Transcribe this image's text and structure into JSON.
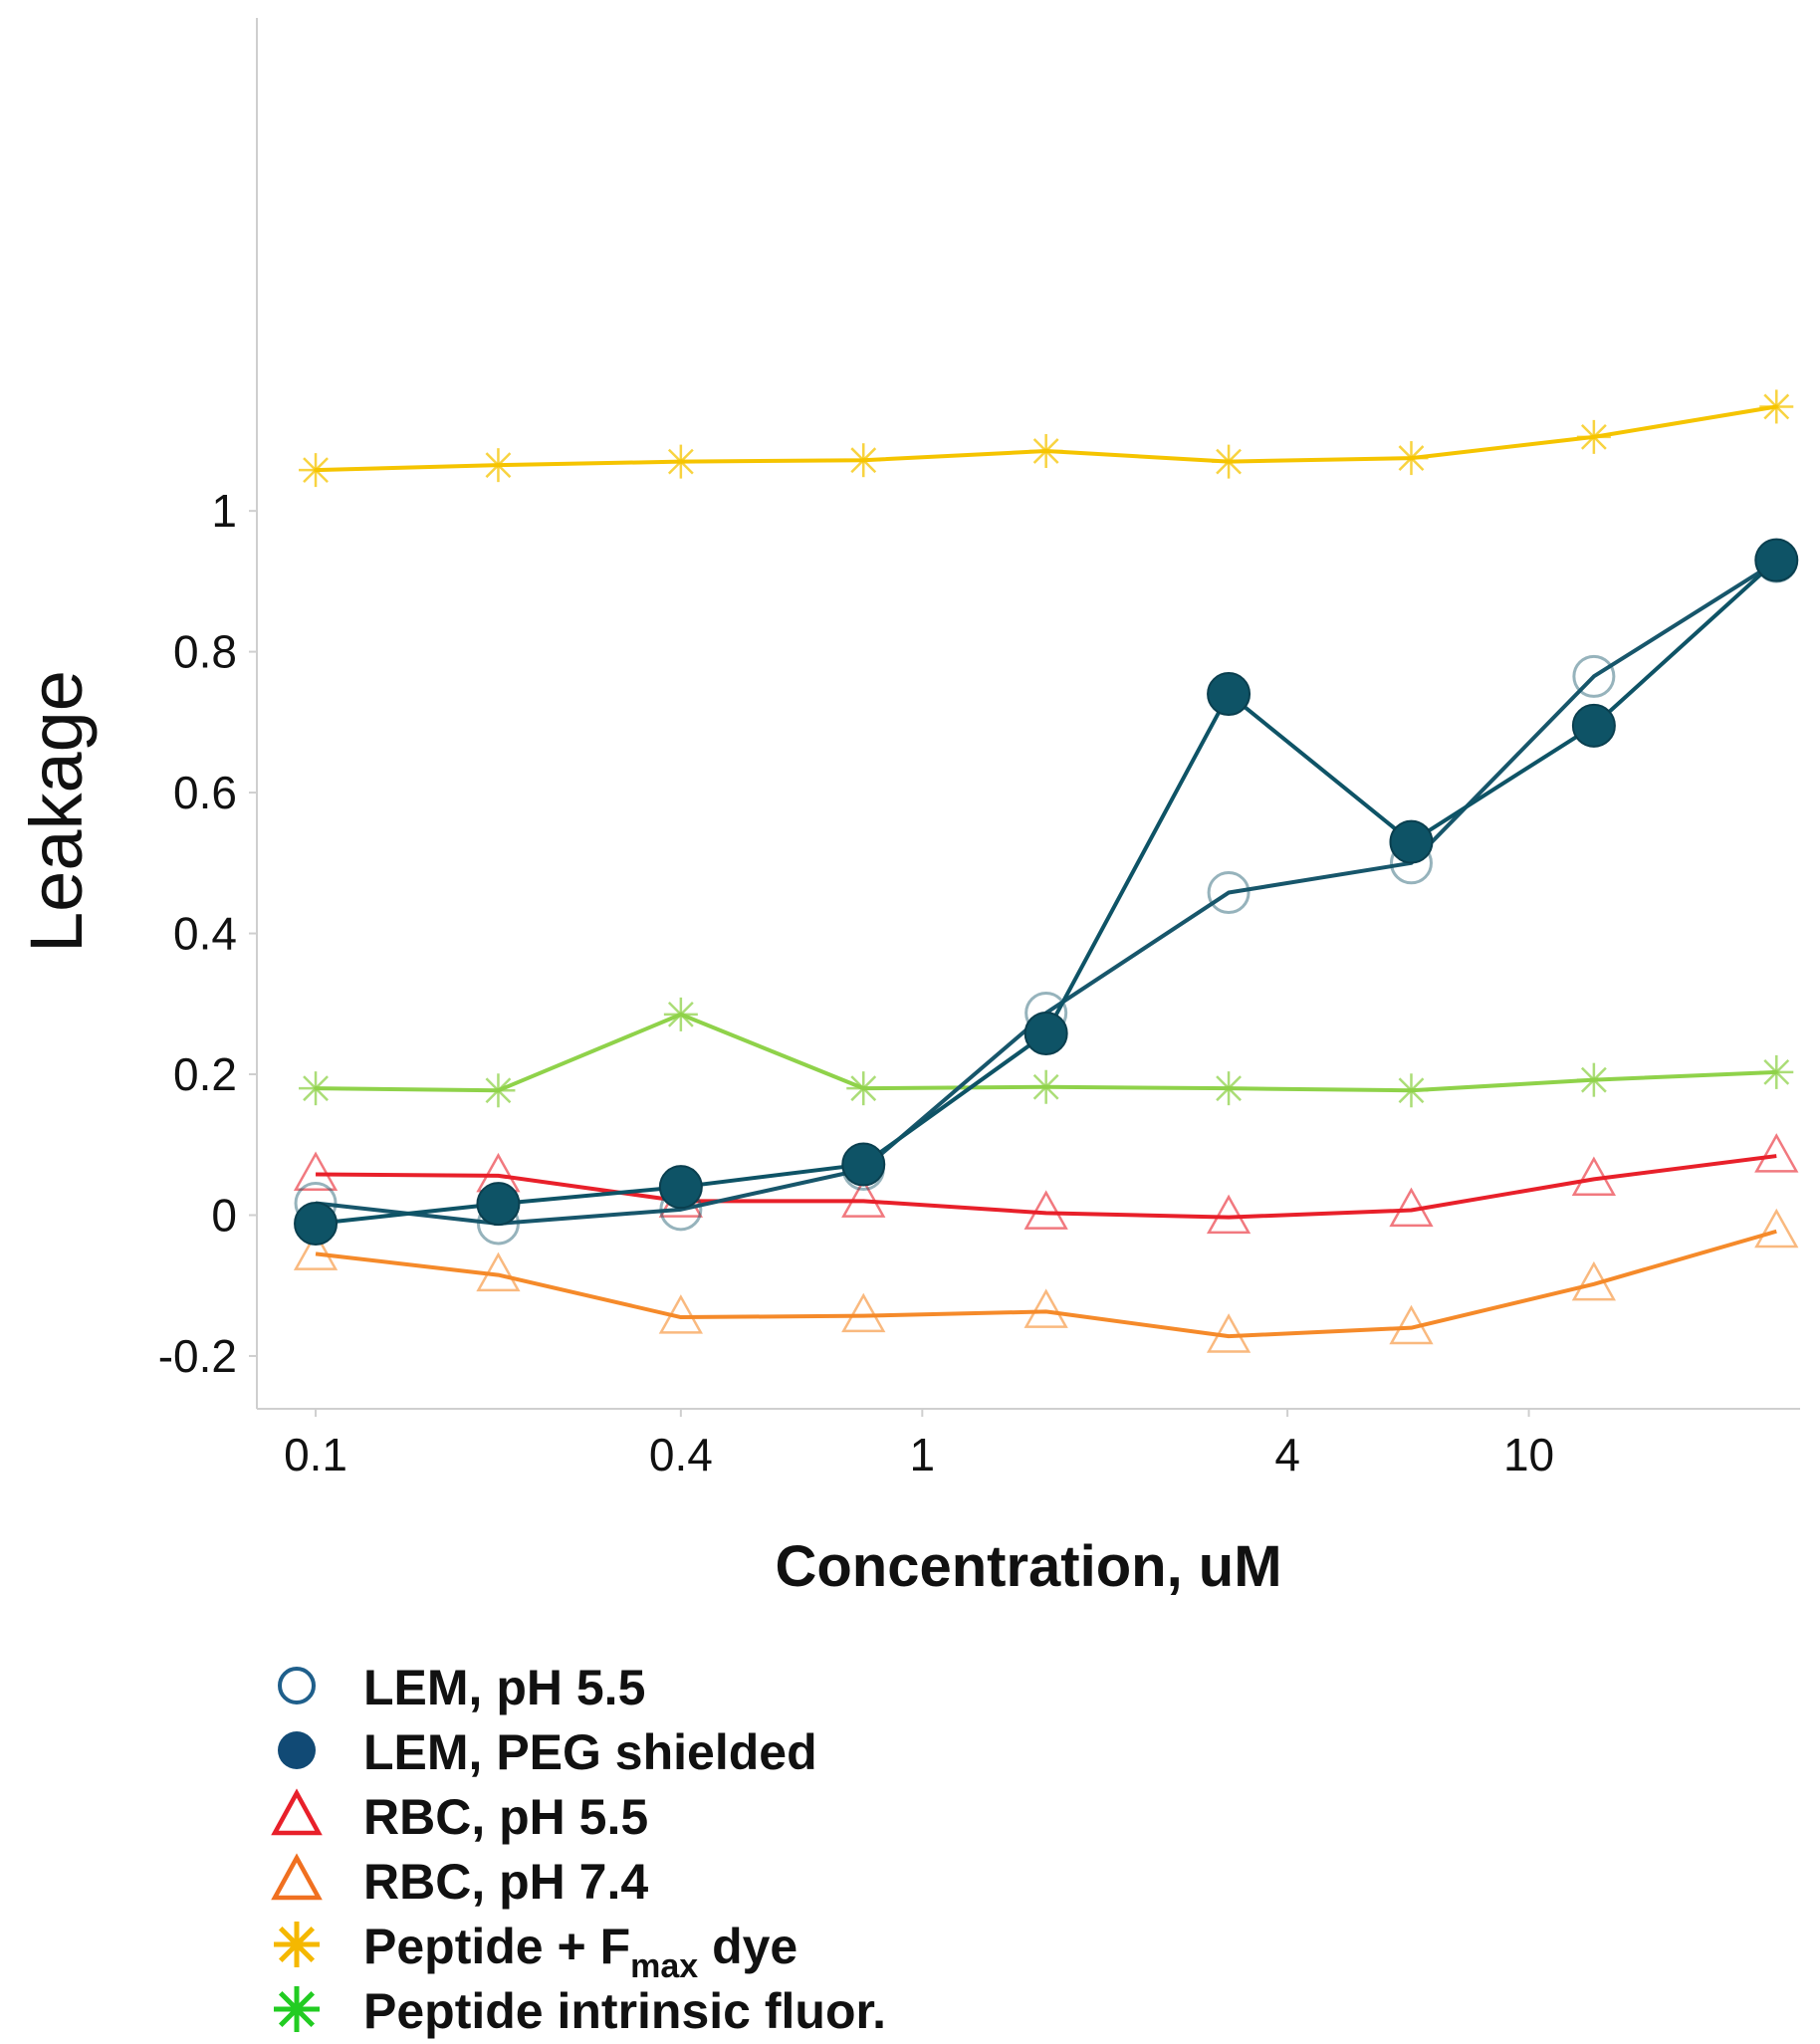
{
  "chart_data": {
    "type": "line",
    "xlabel": "Concentration, uM",
    "ylabel": "Leakage",
    "xscale": "log",
    "xlim": [
      0.08,
      28
    ],
    "ylim": [
      -0.275,
      1.7
    ],
    "xticks": [
      {
        "value": 0.1,
        "label": "0.1"
      },
      {
        "value": 0.4,
        "label": "0.4"
      },
      {
        "value": 1,
        "label": "1"
      },
      {
        "value": 4,
        "label": "4"
      },
      {
        "value": 10,
        "label": "10"
      }
    ],
    "yticks": [
      {
        "value": -0.2,
        "label": "-0.2"
      },
      {
        "value": 0,
        "label": "0"
      },
      {
        "value": 0.2,
        "label": "0.2"
      },
      {
        "value": 0.4,
        "label": "0.4"
      },
      {
        "value": 0.6,
        "label": "0.6"
      },
      {
        "value": 0.8,
        "label": "0.8"
      },
      {
        "value": 1,
        "label": "1"
      }
    ],
    "grid": false,
    "legend_position": "bottom-left",
    "x": [
      0.1,
      0.2,
      0.4,
      0.8,
      1.6,
      3.2,
      6.4,
      12.8,
      25.6
    ],
    "series": [
      {
        "name": "Peptide intrinsic fluor.",
        "marker": "asterisk",
        "color": "#8fd24a",
        "legend_color": "#22cc22",
        "values": [
          0.18,
          0.177,
          0.285,
          0.18,
          0.182,
          0.18,
          0.177,
          0.192,
          0.203
        ]
      },
      {
        "name": "Peptide + F",
        "name_sub": "max",
        "name_suffix": " dye",
        "marker": "asterisk",
        "color": "#f5c400",
        "legend_color": "#f5b800",
        "values": [
          1.058,
          1.065,
          1.07,
          1.072,
          1.085,
          1.07,
          1.075,
          1.105,
          1.148
        ]
      },
      {
        "name": "RBC, pH 7.4",
        "marker": "triangle-open",
        "color": "#f58a2a",
        "legend_color": "#f07020",
        "values": [
          -0.055,
          -0.085,
          -0.145,
          -0.143,
          -0.137,
          -0.172,
          -0.16,
          -0.098,
          -0.023
        ]
      },
      {
        "name": "RBC, pH 5.5",
        "marker": "triangle-open",
        "color": "#e8202a",
        "legend_color": "#e8202a",
        "values": [
          0.058,
          0.056,
          0.02,
          0.02,
          0.003,
          -0.003,
          0.007,
          0.051,
          0.084
        ]
      },
      {
        "name": "LEM, pH 5.5",
        "marker": "circle-open",
        "color": "#17566b",
        "legend_color": "#1f5f8b",
        "values": [
          0.017,
          -0.012,
          0.008,
          0.065,
          0.287,
          0.458,
          0.5,
          0.765,
          0.928
        ]
      },
      {
        "name": "LEM, PEG shielded",
        "marker": "circle-filled",
        "color": "#0e5366",
        "legend_color": "#114a75",
        "values": [
          -0.012,
          0.016,
          0.04,
          0.072,
          0.258,
          0.74,
          0.53,
          0.695,
          0.93
        ]
      }
    ],
    "legend_order": [
      "LEM, pH 5.5",
      "LEM, PEG shielded",
      "RBC, pH 5.5",
      "RBC, pH 7.4",
      "Peptide + F",
      "Peptide intrinsic fluor."
    ]
  }
}
